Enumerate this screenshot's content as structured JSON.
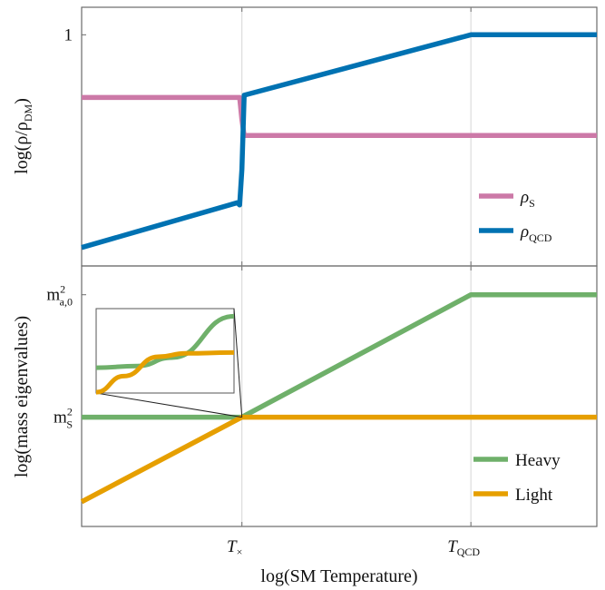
{
  "colors": {
    "rho_s": "#cc79a7",
    "rho_qcd": "#0072b2",
    "heavy": "#6fb06a",
    "light": "#e69f00"
  },
  "chart_data": [
    {
      "type": "line",
      "ylabel": "log(ρ/ρ",
      "ylabel_sub": "DM",
      "ylabel_close": ")",
      "yticks": [
        {
          "label": "1",
          "y": 1.0
        }
      ],
      "x_ticks": [
        {
          "label": "T",
          "sub": "×",
          "x": 1.0
        },
        {
          "label": "T",
          "sub": "QCD",
          "x": 2.0
        }
      ],
      "xlim": [
        0.3,
        2.55
      ],
      "ylim": [
        0.0,
        1.05
      ],
      "grid": "vertical",
      "legend_position": "lower-right",
      "series": [
        {
          "name": "ρ",
          "name_sub": "S",
          "color_key": "rho_s",
          "x": [
            0.3,
            0.99,
            1.0,
            1.01,
            2.55
          ],
          "y": [
            0.72,
            0.72,
            0.62,
            0.55,
            0.55
          ]
        },
        {
          "name": "ρ",
          "name_sub": "QCD",
          "color_key": "rho_qcd",
          "x": [
            0.3,
            0.98,
            0.99,
            1.0,
            1.01,
            2.0,
            2.55
          ],
          "y": [
            0.05,
            0.25,
            0.24,
            0.4,
            0.73,
            1.0,
            1.0
          ]
        }
      ]
    },
    {
      "type": "line",
      "ylabel": "log(mass eigenvalues)",
      "yticks": [
        {
          "label": "m",
          "sup": "2",
          "sub": "a,0",
          "y": 1.0
        },
        {
          "label": "m",
          "sup": "2",
          "sub": "S",
          "y": 0.45
        }
      ],
      "xlabel": "log(SM Temperature)",
      "x_ticks": [
        {
          "label": "T",
          "sub": "×",
          "x": 1.0
        },
        {
          "label": "T",
          "sub": "QCD",
          "x": 2.0
        }
      ],
      "xlim": [
        0.3,
        2.55
      ],
      "ylim": [
        0.0,
        1.06
      ],
      "grid": "vertical",
      "legend_position": "lower-right",
      "series": [
        {
          "name": "Heavy",
          "color_key": "heavy",
          "x": [
            0.3,
            1.0,
            2.0,
            2.55
          ],
          "y": [
            0.45,
            0.45,
            1.0,
            1.0
          ]
        },
        {
          "name": "Light",
          "color_key": "light",
          "x": [
            0.3,
            1.0,
            2.55
          ],
          "y": [
            0.07,
            0.45,
            0.45
          ]
        }
      ],
      "inset": {
        "zoom_of": "crossing at T×",
        "heavy": [
          [
            0.0,
            0.3
          ],
          [
            0.3,
            0.32
          ],
          [
            0.55,
            0.42
          ],
          [
            1.0,
            0.91
          ]
        ],
        "light": [
          [
            0.0,
            0.01
          ],
          [
            0.2,
            0.2
          ],
          [
            0.45,
            0.43
          ],
          [
            0.65,
            0.47
          ],
          [
            1.0,
            0.48
          ]
        ]
      }
    }
  ]
}
